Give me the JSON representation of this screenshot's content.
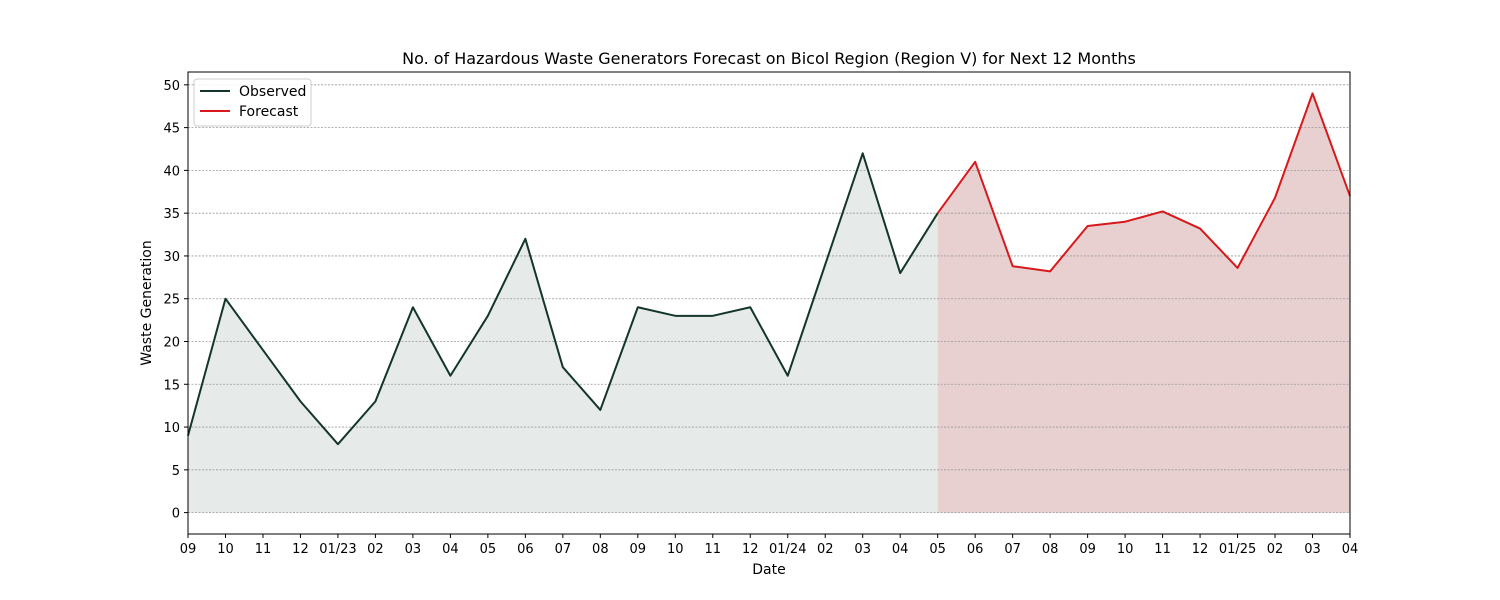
{
  "chart_data": {
    "type": "area",
    "title": "No. of Hazardous Waste Generators Forecast on Bicol Region (Region V) for Next 12 Months",
    "xlabel": "Date",
    "ylabel": "Waste Generation",
    "ylim": [
      -2.5,
      51.5
    ],
    "yticks": [
      0,
      5,
      10,
      15,
      20,
      25,
      30,
      35,
      40,
      45,
      50
    ],
    "x_tick_labels": [
      "09",
      "10",
      "11",
      "12",
      "01/23",
      "02",
      "03",
      "04",
      "05",
      "06",
      "07",
      "08",
      "09",
      "10",
      "11",
      "12",
      "01/24",
      "02",
      "03",
      "04",
      "05",
      "06",
      "07",
      "08",
      "09",
      "10",
      "11",
      "12",
      "01/25",
      "02",
      "03",
      "04"
    ],
    "grid": "horizontal dashed",
    "legend_position": "top-left",
    "series": [
      {
        "name": "Observed",
        "color": "#14352a",
        "fill_color": "#e6ebe9",
        "start_index": 0,
        "values": [
          9,
          25,
          19,
          13,
          8,
          13,
          24,
          16,
          23,
          32,
          17,
          12,
          24,
          23,
          23,
          24,
          16,
          29,
          42,
          28,
          35
        ]
      },
      {
        "name": "Forecast",
        "color": "#d7191c",
        "fill_color": "#e8d0d1",
        "start_index": 20,
        "values": [
          35,
          41,
          28.8,
          28.2,
          33.5,
          34,
          35.2,
          33.2,
          28.6,
          36.8,
          49,
          37
        ]
      }
    ]
  }
}
